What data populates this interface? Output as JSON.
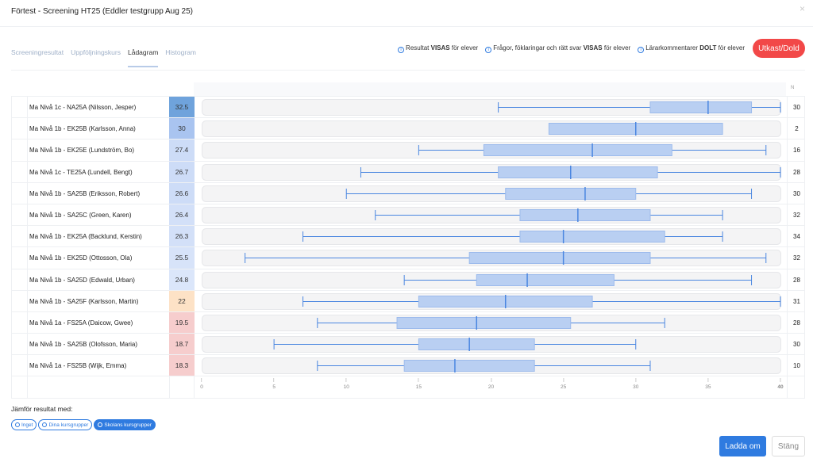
{
  "header": {
    "title": "Förtest - Screening HT25 (Eddler testgrupp Aug 25)",
    "close": "×"
  },
  "tabs": [
    {
      "label": "Screeningresultat"
    },
    {
      "label": "Uppföljningskurs"
    },
    {
      "label": "Lådagram"
    },
    {
      "label": "Histogram"
    }
  ],
  "infos": [
    {
      "pre": "Resultat ",
      "bold": "VISAS",
      "post": " för elever"
    },
    {
      "pre": "Frågor, föklaringar och rätt svar ",
      "bold": "VISAS",
      "post": " för elever"
    },
    {
      "pre": "Lärarkommentarer ",
      "bold": "DOLT",
      "post": " för elever"
    }
  ],
  "status_button": "Utkast/Dold",
  "n_header": "N",
  "chart_data": {
    "type": "boxplot",
    "xlim": [
      0,
      40
    ],
    "xticks": [
      0,
      5,
      10,
      15,
      20,
      25,
      30,
      35,
      40
    ],
    "colors": {
      "box": "#b9cff2",
      "line": "#4a86e0",
      "track": "#f4f4f5"
    },
    "rows": [
      {
        "label": "Ma Nivå 1c - NA25A (Nilsson, Jesper)",
        "score": "32.5",
        "color": "#6fa3dc",
        "n": "30",
        "min": 20.5,
        "q1": 31,
        "median": 35,
        "q3": 38,
        "max": 40
      },
      {
        "label": "Ma Nivå 1b - EK25B (Karlsson, Anna)",
        "score": "30",
        "color": "#a9c4f0",
        "n": "2",
        "min": 24,
        "q1": 24,
        "median": 30,
        "q3": 36,
        "max": 36
      },
      {
        "label": "Ma Nivå 1b - EK25E (Lundström, Bo)",
        "score": "27.4",
        "color": "#cddcf7",
        "n": "16",
        "min": 15,
        "q1": 19.5,
        "median": 27,
        "q3": 32.5,
        "max": 39
      },
      {
        "label": "Ma Nivå 1c - TE25A (Lundell, Bengt)",
        "score": "26.7",
        "color": "#cddcf7",
        "n": "28",
        "min": 11,
        "q1": 20.5,
        "median": 25.5,
        "q3": 31.5,
        "max": 40
      },
      {
        "label": "Ma Nivå 1b - SA25B (Eriksson, Robert)",
        "score": "26.6",
        "color": "#cddcf7",
        "n": "30",
        "min": 10,
        "q1": 21,
        "median": 26.5,
        "q3": 30,
        "max": 38
      },
      {
        "label": "Ma Nivå 1b - SA25C (Green, Karen)",
        "score": "26.4",
        "color": "#d3e0f8",
        "n": "32",
        "min": 12,
        "q1": 22,
        "median": 26,
        "q3": 31,
        "max": 36
      },
      {
        "label": "Ma Nivå 1b - EK25A (Backlund, Kerstin)",
        "score": "26.3",
        "color": "#d3e0f8",
        "n": "34",
        "min": 7,
        "q1": 22,
        "median": 25,
        "q3": 32,
        "max": 36
      },
      {
        "label": "Ma Nivå 1b - EK25D (Ottosson, Ola)",
        "score": "25.5",
        "color": "#d7e3f9",
        "n": "32",
        "min": 3,
        "q1": 18.5,
        "median": 25,
        "q3": 31,
        "max": 39
      },
      {
        "label": "Ma Nivå 1b - SA25D (Edwald, Urban)",
        "score": "24.8",
        "color": "#dbe6fa",
        "n": "28",
        "min": 14,
        "q1": 19,
        "median": 22.5,
        "q3": 28.5,
        "max": 38
      },
      {
        "label": "Ma Nivå 1b - SA25F (Karlsson, Martin)",
        "score": "22",
        "color": "#fde2c6",
        "n": "31",
        "min": 7,
        "q1": 15,
        "median": 21,
        "q3": 27,
        "max": 40
      },
      {
        "label": "Ma Nivå 1a - FS25A (Daicow, Gwee)",
        "score": "19.5",
        "color": "#f6cdcd",
        "n": "28",
        "min": 8,
        "q1": 13.5,
        "median": 19,
        "q3": 25.5,
        "max": 32
      },
      {
        "label": "Ma Nivå 1b - SA25B (Olofsson, Maria)",
        "score": "18.7",
        "color": "#f6cdcd",
        "n": "30",
        "min": 5,
        "q1": 15,
        "median": 18.5,
        "q3": 23,
        "max": 30
      },
      {
        "label": "Ma Nivå 1a - FS25B (Wijk, Emma)",
        "score": "18.3",
        "color": "#f6cdcd",
        "n": "10",
        "min": 8,
        "q1": 14,
        "median": 17.5,
        "q3": 23,
        "max": 31
      }
    ]
  },
  "compare": {
    "label": "Jämför resultat med:",
    "options": [
      {
        "label": "Inget",
        "selected": false
      },
      {
        "label": "Dina kursgrupper",
        "selected": false
      },
      {
        "label": "Skolans kursgrupper",
        "selected": true
      }
    ]
  },
  "footer": {
    "reload": "Ladda om",
    "close": "Stäng"
  }
}
